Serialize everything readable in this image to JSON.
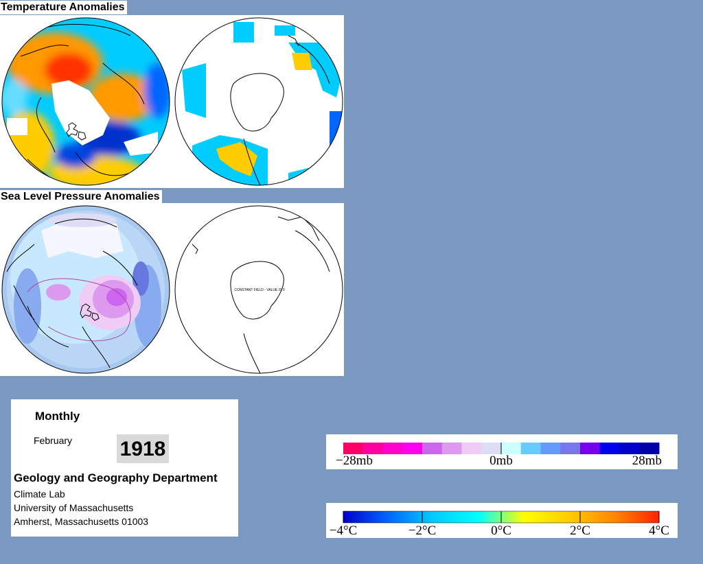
{
  "sections": {
    "temperature_title": "Temperature Anomalies",
    "pressure_title": "Sea Level Pressure Anomalies"
  },
  "maps": {
    "pressure_south_note": "CONSTANT FIELD - VALUE IS 0"
  },
  "info": {
    "period": "Monthly",
    "month": "February",
    "year": "1918",
    "department": "Geology and Geography Department",
    "lab": "Climate Lab",
    "university": "University of Massachusetts",
    "address": "Amherst, Massachusetts 01003"
  },
  "pressure_legend": {
    "labels": [
      "−28mb",
      "0mb",
      "28mb"
    ],
    "colors": [
      "#ff0066",
      "#ff00a0",
      "#ff00cc",
      "#ff00ee",
      "#cc66ee",
      "#dd99ee",
      "#eeccf6",
      "#ddddf6",
      "#ccffff",
      "#66ccff",
      "#6699ff",
      "#7777ee",
      "#7700ee",
      "#0000ee",
      "#0000cc",
      "#0000aa"
    ]
  },
  "temperature_legend": {
    "labels": [
      "−4°C",
      "−2°C",
      "0°C",
      "2°C",
      "4°C"
    ],
    "colors": [
      "#0000cc",
      "#0066ff",
      "#00ccff",
      "#00ffff",
      "#ffff00",
      "#ffcc00",
      "#ff8800",
      "#ff2200"
    ]
  }
}
